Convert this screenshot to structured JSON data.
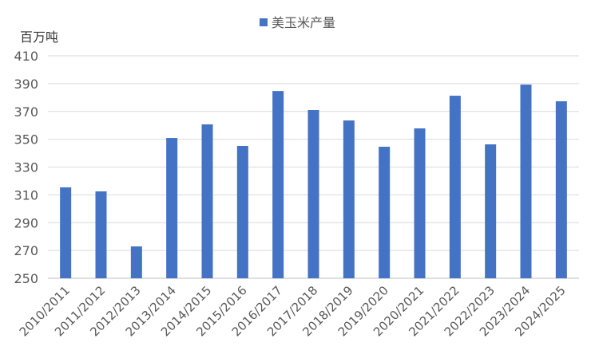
{
  "chart_data": {
    "type": "bar",
    "title": "",
    "ylabel": "百万吨",
    "xlabel": "",
    "legend": {
      "position": "top",
      "entries": [
        "美玉米产量"
      ]
    },
    "series": [
      {
        "name": "美玉米产量",
        "color": "#4472C4",
        "values": [
          315.4,
          312.5,
          272.9,
          350.9,
          360.7,
          345.2,
          384.7,
          371.0,
          363.5,
          344.6,
          357.8,
          381.3,
          346.3,
          389.3,
          377.3
        ]
      }
    ],
    "categories": [
      "2010/2011",
      "2011/2012",
      "2012/2013",
      "2013/2014",
      "2014/2015",
      "2015/2016",
      "2016/2017",
      "2017/2018",
      "2018/2019",
      "2019/2020",
      "2020/2021",
      "2021/2022",
      "2022/2023",
      "2023/2024",
      "2024/2025"
    ],
    "ylim": [
      250,
      410
    ],
    "yticks": [
      250,
      270,
      290,
      310,
      330,
      350,
      370,
      390,
      410
    ],
    "grid": true
  }
}
